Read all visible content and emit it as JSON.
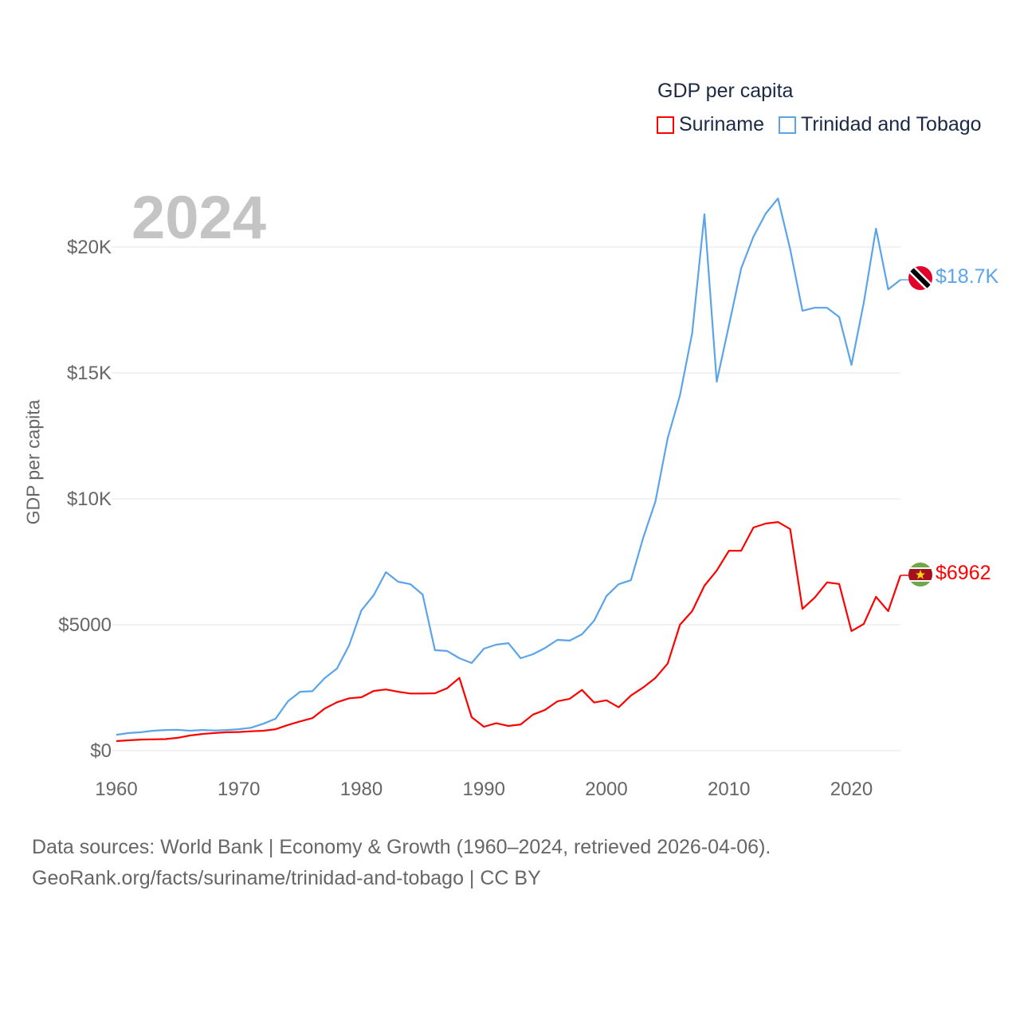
{
  "chart_data": {
    "type": "line",
    "title": "GDP per capita",
    "year_label": "2024",
    "xlabel": "",
    "ylabel": "GDP per capita",
    "xlim": [
      1960,
      2024
    ],
    "ylim": [
      0,
      22000
    ],
    "grid": true,
    "legend_position": "top-right",
    "x_ticks": [
      1960,
      1970,
      1980,
      1990,
      2000,
      2010,
      2020
    ],
    "x_tick_labels": [
      "1960",
      "1970",
      "1980",
      "1990",
      "2000",
      "2010",
      "2020"
    ],
    "y_ticks": [
      0,
      5000,
      10000,
      15000,
      20000
    ],
    "y_tick_labels": [
      "$0",
      "$5000",
      "$10K",
      "$15K",
      "$20K"
    ],
    "x_start": 1960,
    "series": [
      {
        "name": "Suriname",
        "color": "#ff0000",
        "end_label": "$6962",
        "flag": "suriname-flag",
        "values": [
          380,
          410,
          440,
          450,
          460,
          510,
          600,
          660,
          700,
          730,
          740,
          770,
          790,
          850,
          1020,
          1160,
          1290,
          1670,
          1920,
          2080,
          2120,
          2370,
          2430,
          2340,
          2270,
          2270,
          2280,
          2480,
          2890,
          1330,
          950,
          1090,
          980,
          1040,
          1430,
          1620,
          1960,
          2060,
          2410,
          1910,
          2000,
          1720,
          2190,
          2510,
          2890,
          3460,
          5000,
          5540,
          6550,
          7150,
          7940,
          7940,
          8860,
          9020,
          9080,
          8800,
          5630,
          6080,
          6680,
          6620,
          4750,
          5030,
          6110,
          5540,
          6962
        ]
      },
      {
        "name": "Trinidad and Tobago",
        "color": "#5ba4ea",
        "end_label": "$18.7K",
        "flag": "trinidad-and-tobago-flag",
        "values": [
          630,
          700,
          730,
          790,
          820,
          830,
          790,
          820,
          800,
          820,
          850,
          910,
          1070,
          1270,
          1960,
          2340,
          2360,
          2880,
          3260,
          4180,
          5570,
          6170,
          7090,
          6710,
          6610,
          6200,
          3990,
          3960,
          3670,
          3480,
          4050,
          4210,
          4270,
          3670,
          3830,
          4080,
          4400,
          4370,
          4620,
          5160,
          6140,
          6610,
          6770,
          8450,
          9900,
          12410,
          14110,
          16580,
          21300,
          14650,
          16900,
          19150,
          20410,
          21330,
          21930,
          19910,
          17470,
          17590,
          17590,
          17220,
          15320,
          17780,
          20730,
          18320,
          18700
        ]
      }
    ]
  },
  "footer": {
    "line1": "Data sources: World Bank | Economy & Growth (1960–2024, retrieved 2026-04-06).",
    "line2": "GeoRank.org/facts/suriname/trinidad-and-tobago | CC BY"
  }
}
